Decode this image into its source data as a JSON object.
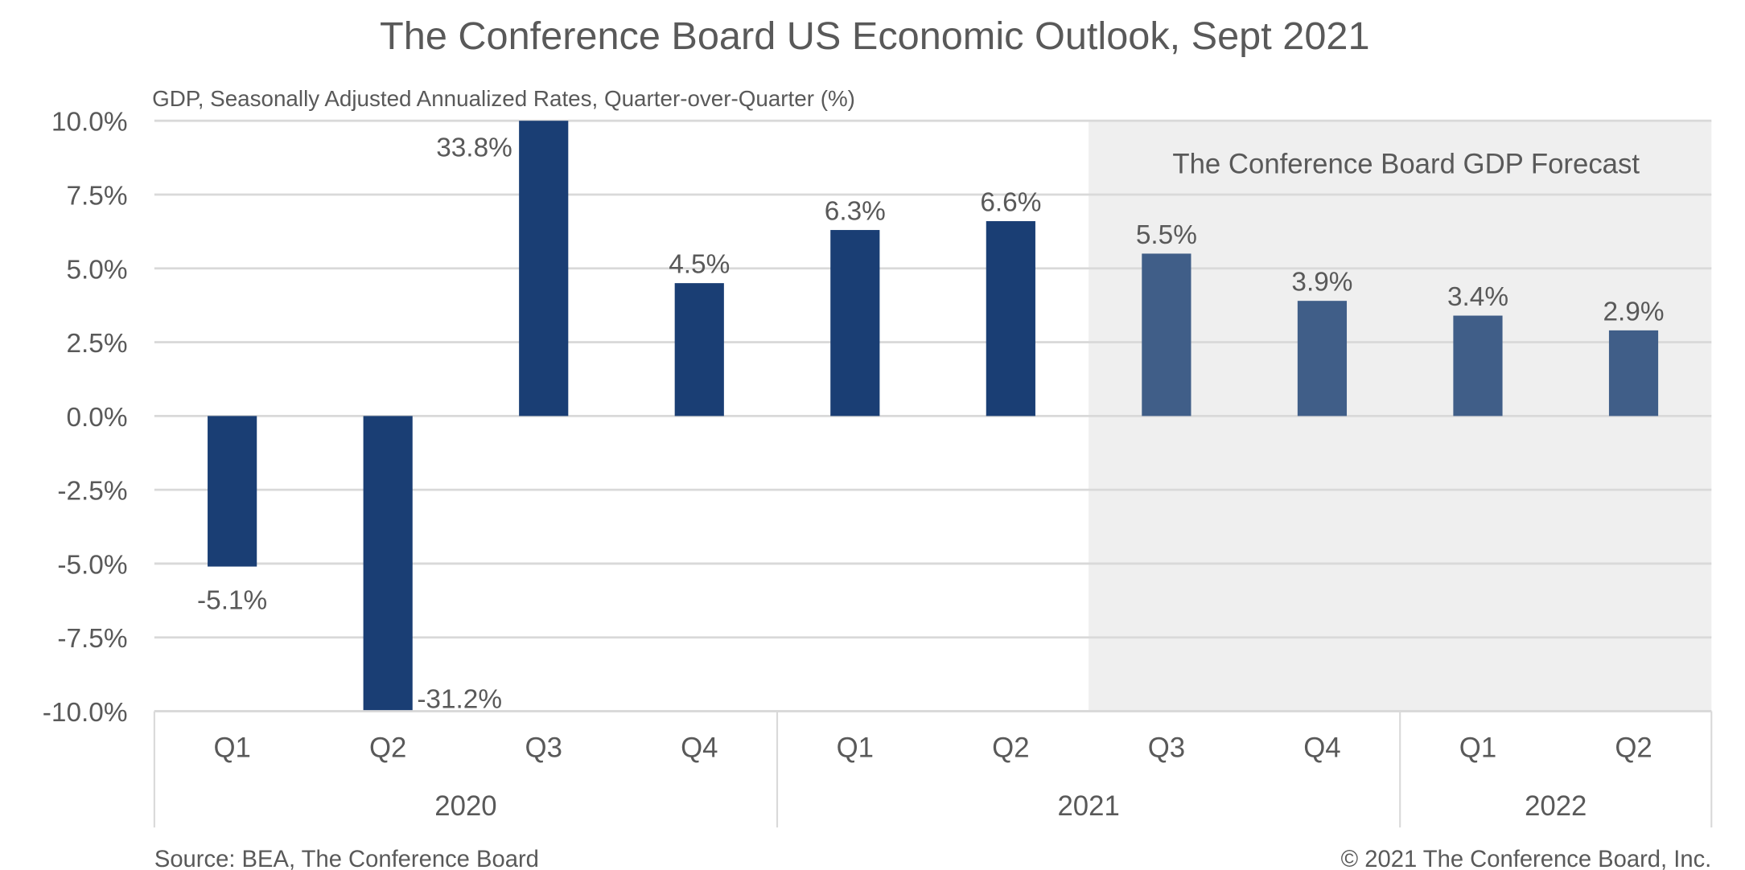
{
  "chart_data": {
    "type": "bar",
    "title": "The Conference Board US Economic Outlook, Sept 2021",
    "subtitle": "GDP, Seasonally Adjusted Annualized Rates, Quarter-over-Quarter (%)",
    "xlabel": "",
    "ylabel": "",
    "ylim": [
      -10,
      10
    ],
    "yticks": [
      10,
      7.5,
      5,
      2.5,
      0,
      -2.5,
      -5,
      -7.5,
      -10
    ],
    "ytick_labels": [
      "10.0%",
      "7.5%",
      "5.0%",
      "2.5%",
      "0.0%",
      "-2.5%",
      "-5.0%",
      "-7.5%",
      "-10.0%"
    ],
    "grid": true,
    "categories": [
      "Q1",
      "Q2",
      "Q3",
      "Q4",
      "Q1",
      "Q2",
      "Q3",
      "Q4",
      "Q1",
      "Q2"
    ],
    "years": [
      {
        "label": "2020",
        "count": 4
      },
      {
        "label": "2021",
        "count": 4
      },
      {
        "label": "2022",
        "count": 2
      }
    ],
    "values": [
      -5.1,
      -31.2,
      33.8,
      4.5,
      6.3,
      6.6,
      5.5,
      3.9,
      3.4,
      2.9
    ],
    "data_labels": [
      "-5.1%",
      "-31.2%",
      "33.8%",
      "4.5%",
      "6.3%",
      "6.6%",
      "5.5%",
      "3.9%",
      "3.4%",
      "2.9%"
    ],
    "forecast": [
      false,
      false,
      false,
      false,
      false,
      false,
      true,
      true,
      true,
      true
    ],
    "forecast_region_label": "The Conference Board GDP Forecast",
    "forecast_start_index": 6,
    "colors": {
      "actual": "#1a3e74",
      "forecast": "#405e88",
      "forecast_shade": "#efefef",
      "grid": "#d9d9d9",
      "text": "#595959"
    }
  },
  "footer": {
    "source": "Source: BEA, The Conference Board",
    "copyright": "© 2021 The Conference Board, Inc."
  }
}
